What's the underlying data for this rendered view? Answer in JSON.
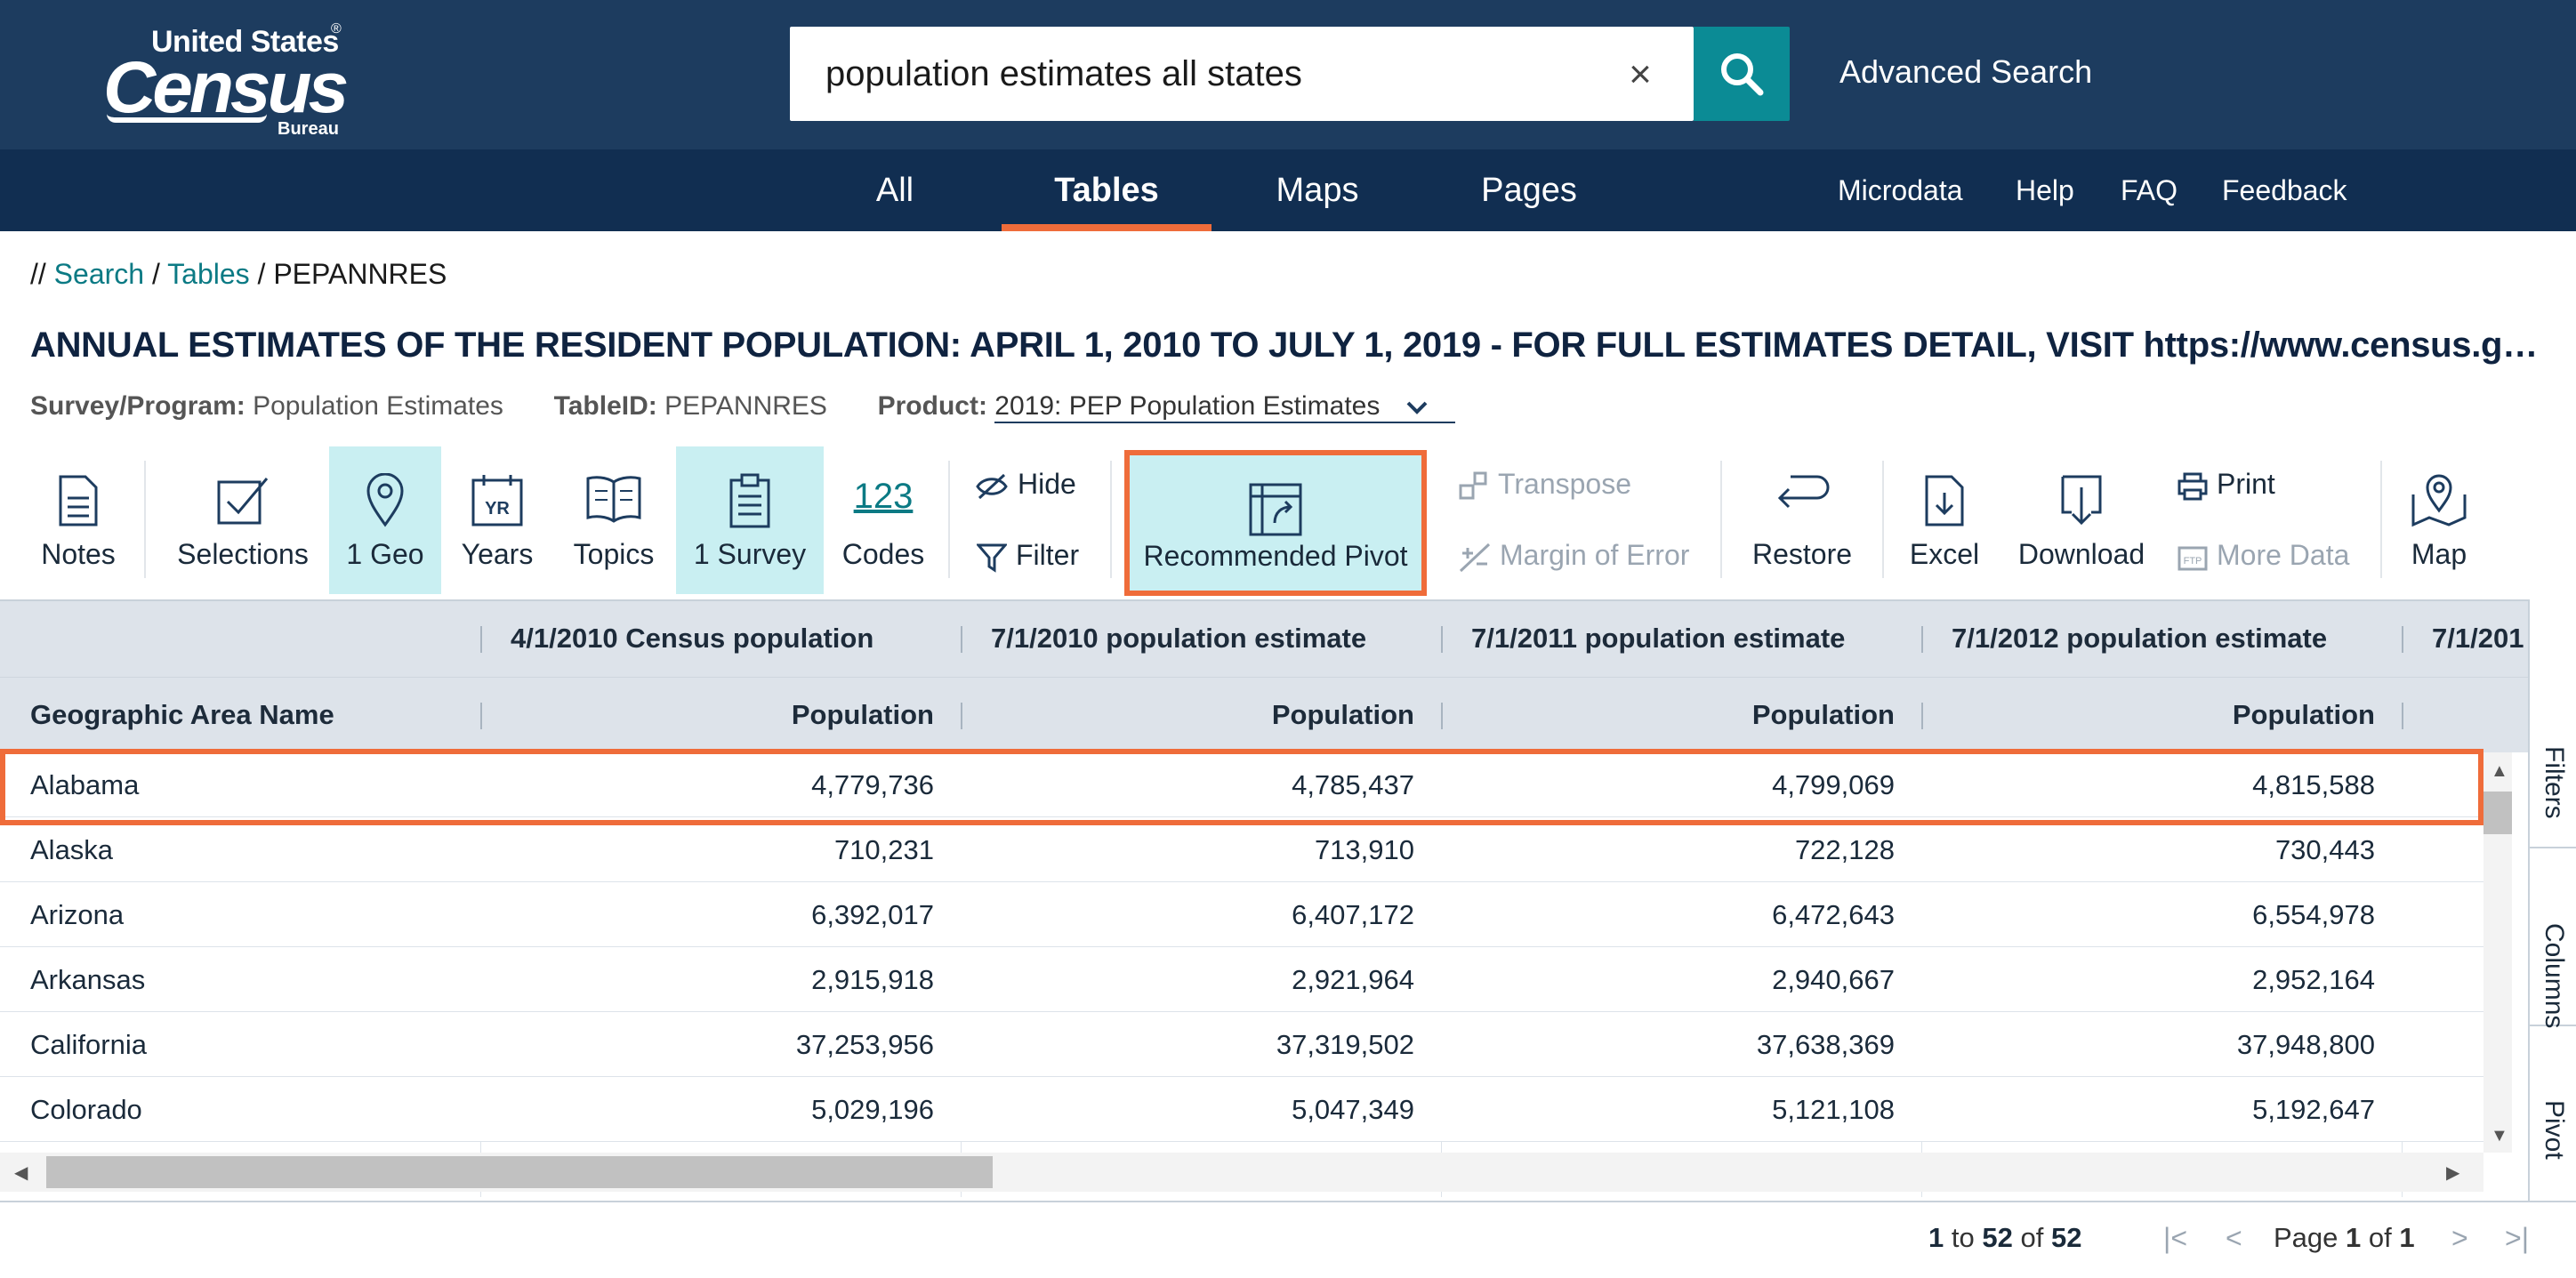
{
  "header": {
    "logo": {
      "line1": "United States",
      "registered": "®",
      "line2": "Census",
      "line3": "Bureau"
    },
    "search": {
      "value": "population estimates all states",
      "placeholder": ""
    },
    "clear_label": "×",
    "advanced_search": "Advanced Search"
  },
  "nav": {
    "tabs": [
      "All",
      "Tables",
      "Maps",
      "Pages"
    ],
    "active_tab": "Tables",
    "links": [
      "Microdata",
      "Help",
      "FAQ",
      "Feedback"
    ]
  },
  "breadcrumb": {
    "prefix": "//",
    "items": [
      "Search",
      "Tables"
    ],
    "current": "PEPANNRES"
  },
  "title": "ANNUAL ESTIMATES OF THE RESIDENT POPULATION: APRIL 1, 2010 TO JULY 1, 2019 - FOR FULL ESTIMATES DETAIL, VISIT https://www.census.gov/pr...",
  "meta": {
    "survey_label": "Survey/Program:",
    "survey_value": "Population Estimates",
    "tableid_label": "TableID:",
    "tableid_value": "PEPANNRES",
    "product_label": "Product:",
    "product_value": "2019: PEP Population Estimates"
  },
  "toolbar": {
    "notes": "Notes",
    "selections": "Selections",
    "geo": "1 Geo",
    "years": "Years",
    "years_icon_text": "YR",
    "topics": "Topics",
    "survey": "1 Survey",
    "codes": "Codes",
    "codes_icon_text": "123",
    "hide": "Hide",
    "filter": "Filter",
    "recommended_pivot": "Recommended Pivot",
    "transpose": "Transpose",
    "margin_of_error": "Margin of Error",
    "restore": "Restore",
    "excel": "Excel",
    "download": "Download",
    "print": "Print",
    "more_data": "More Data",
    "map": "Map"
  },
  "table": {
    "group_headers": [
      "",
      "4/1/2010 Census population",
      "7/1/2010 population estimate",
      "7/1/2011 population estimate",
      "7/1/2012 population estimate",
      "7/1/201"
    ],
    "column_headers": [
      "Geographic Area Name",
      "Population",
      "Population",
      "Population",
      "Population"
    ],
    "rows": [
      {
        "name": "Alabama",
        "values": [
          "4,779,736",
          "4,785,437",
          "4,799,069",
          "4,815,588"
        ]
      },
      {
        "name": "Alaska",
        "values": [
          "710,231",
          "713,910",
          "722,128",
          "730,443"
        ]
      },
      {
        "name": "Arizona",
        "values": [
          "6,392,017",
          "6,407,172",
          "6,472,643",
          "6,554,978"
        ]
      },
      {
        "name": "Arkansas",
        "values": [
          "2,915,918",
          "2,921,964",
          "2,940,667",
          "2,952,164"
        ]
      },
      {
        "name": "California",
        "values": [
          "37,253,956",
          "37,319,502",
          "37,638,369",
          "37,948,800"
        ]
      },
      {
        "name": "Colorado",
        "values": [
          "5,029,196",
          "5,047,349",
          "5,121,108",
          "5,192,647"
        ]
      }
    ]
  },
  "side_tabs": [
    "Filters",
    "Columns",
    "Pivot"
  ],
  "pagination": {
    "from": "1",
    "to_word": "to",
    "to": "52",
    "of_word": "of",
    "total": "52",
    "page_word": "Page",
    "page": "1",
    "page_of_word": "of",
    "page_total": "1"
  },
  "colors": {
    "header_bg": "#1d3c5f",
    "nav_bg": "#112e51",
    "accent": "#ef6c3a",
    "teal": "#0b8b95",
    "highlight": "#c9eff2"
  }
}
